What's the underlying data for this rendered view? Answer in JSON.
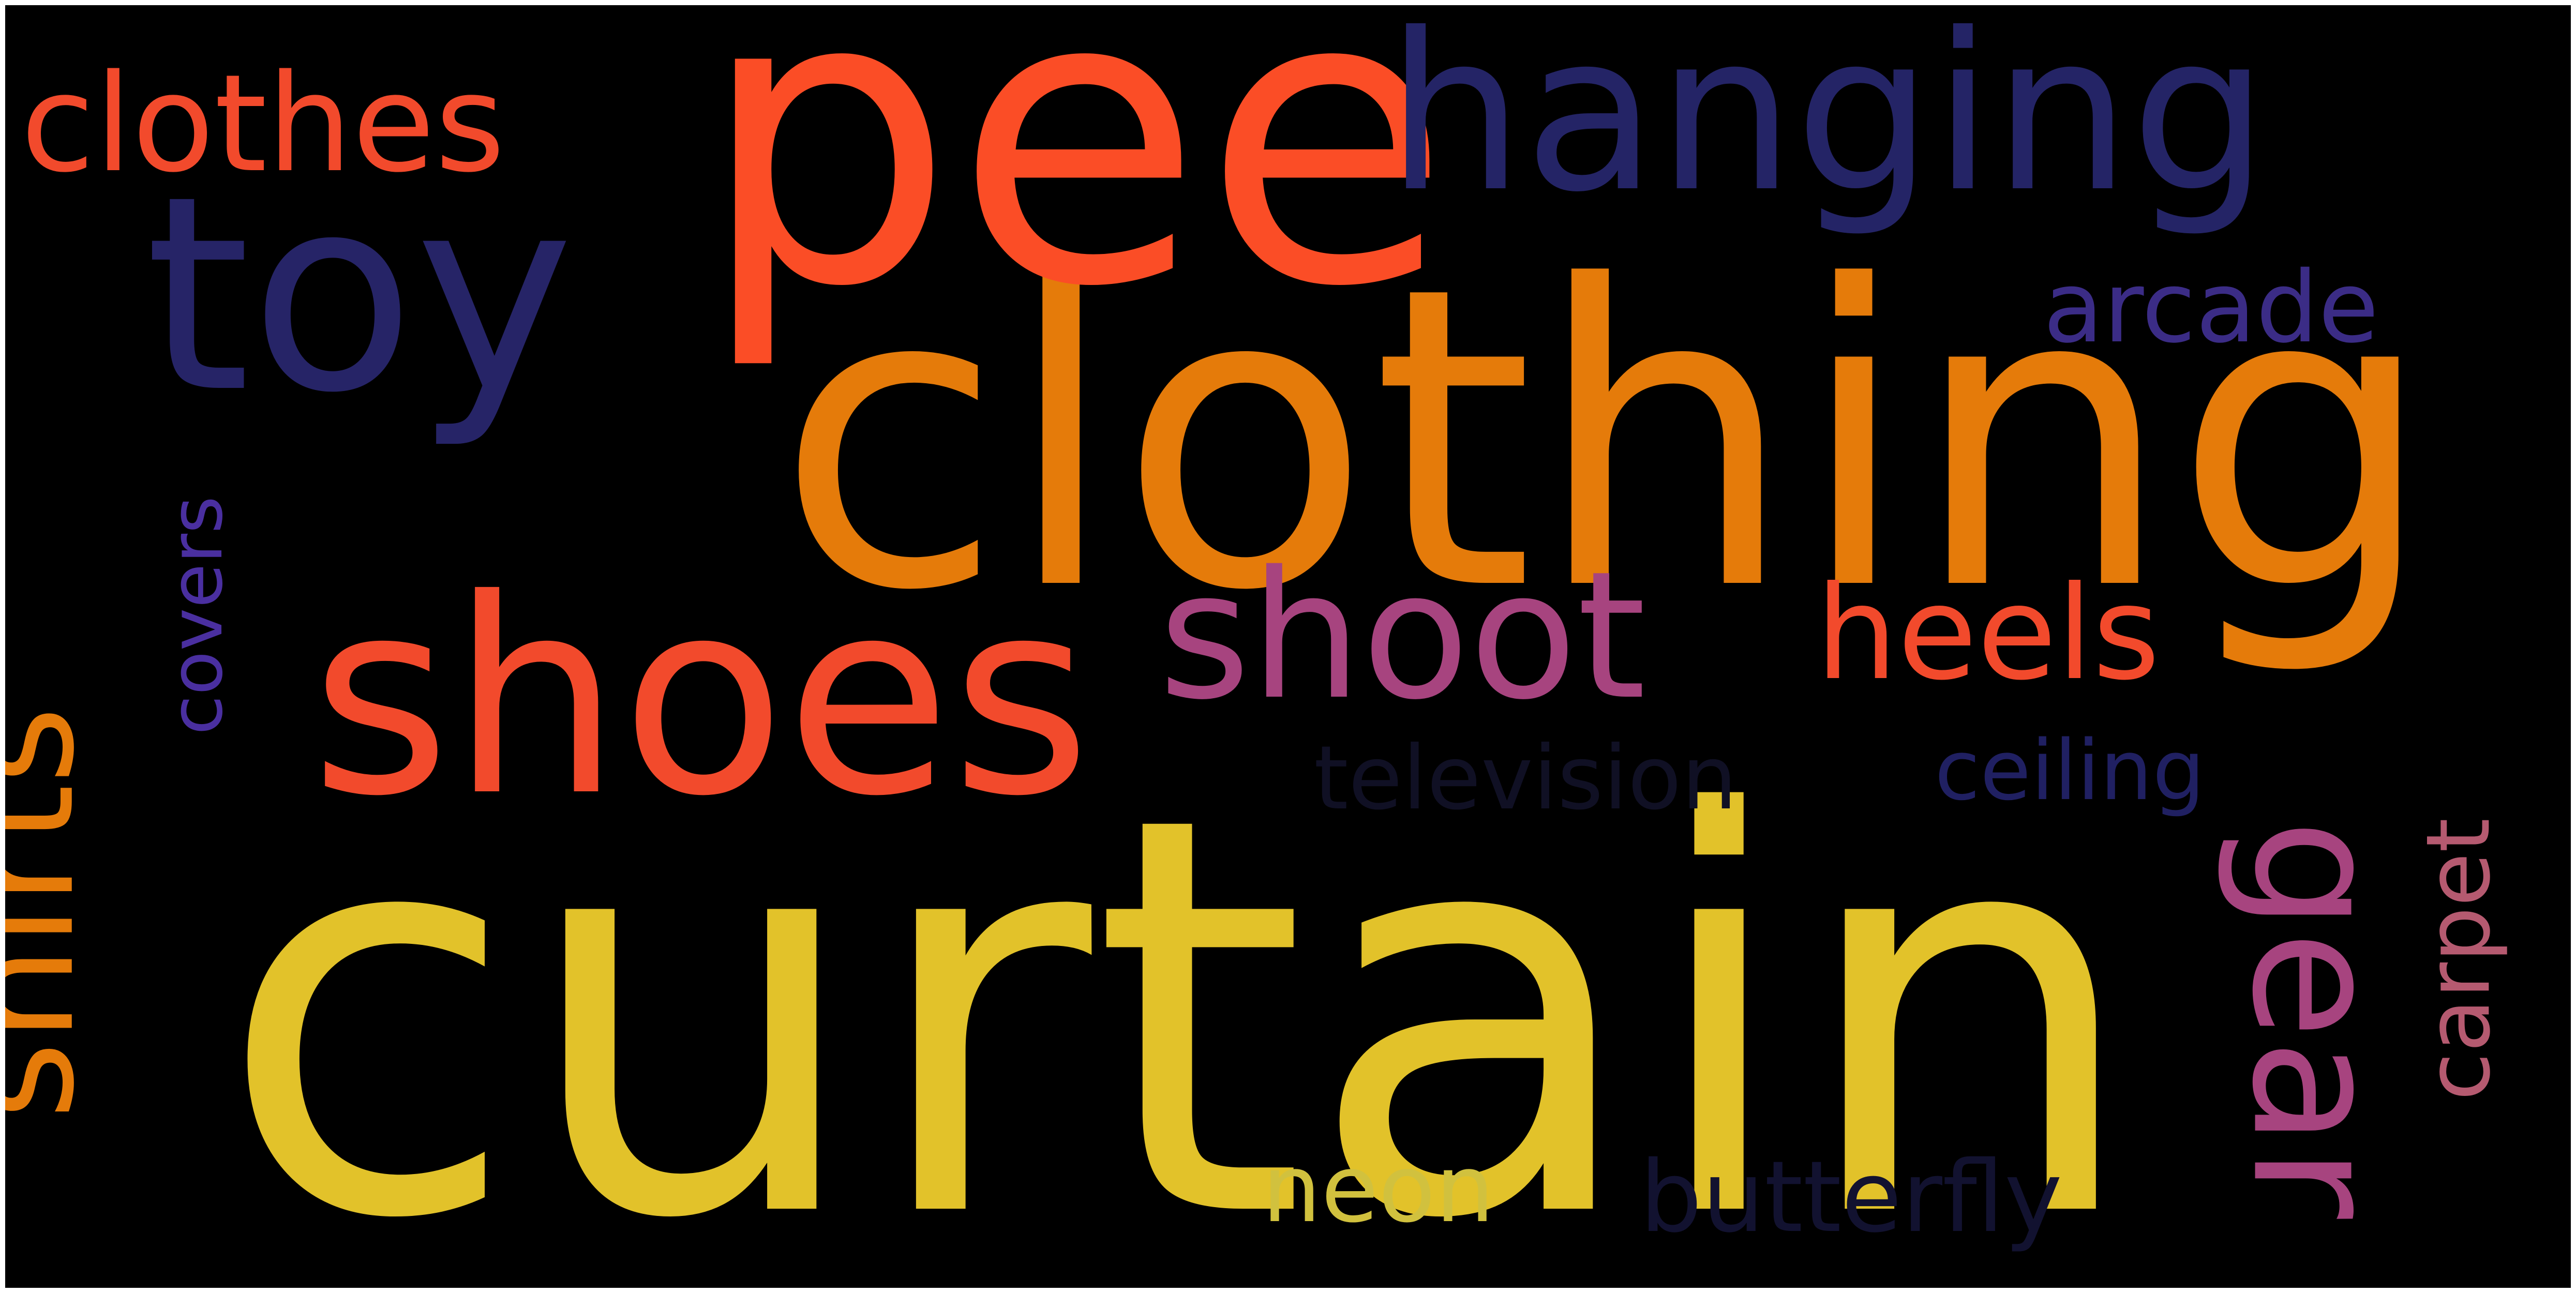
{
  "cloud": {
    "background": "#000000",
    "words": [
      {
        "id": "curtain",
        "text": "curtain",
        "color": "#E2C22A"
      },
      {
        "id": "clothing",
        "text": "clothing",
        "color": "#E57B0A"
      },
      {
        "id": "pee",
        "text": "pee",
        "color": "#FB4D26"
      },
      {
        "id": "shoes",
        "text": "shoes",
        "color": "#F24A2C"
      },
      {
        "id": "hanging",
        "text": "hanging",
        "color": "#242466"
      },
      {
        "id": "toy",
        "text": "toy",
        "color": "#262467"
      },
      {
        "id": "shoot",
        "text": "shoot",
        "color": "#A7447F"
      },
      {
        "id": "shirts",
        "text": "shirts",
        "color": "#E57B0A"
      },
      {
        "id": "clothes",
        "text": "clothes",
        "color": "#F24A2C"
      },
      {
        "id": "gear",
        "text": "gear",
        "color": "#A7447F"
      },
      {
        "id": "heels",
        "text": "heels",
        "color": "#F24A2C"
      },
      {
        "id": "arcade",
        "text": "arcade",
        "color": "#3B2C86"
      },
      {
        "id": "covers",
        "text": "covers",
        "color": "#4A2FA0"
      },
      {
        "id": "carpet",
        "text": "carpet",
        "color": "#B55A70"
      },
      {
        "id": "ceiling",
        "text": "ceiling",
        "color": "#202062"
      },
      {
        "id": "neon",
        "text": "neon",
        "color": "#D1C13E"
      },
      {
        "id": "butterfly",
        "text": "butterfly",
        "color": "#121230"
      },
      {
        "id": "television",
        "text": "television",
        "color": "#101024"
      }
    ]
  }
}
